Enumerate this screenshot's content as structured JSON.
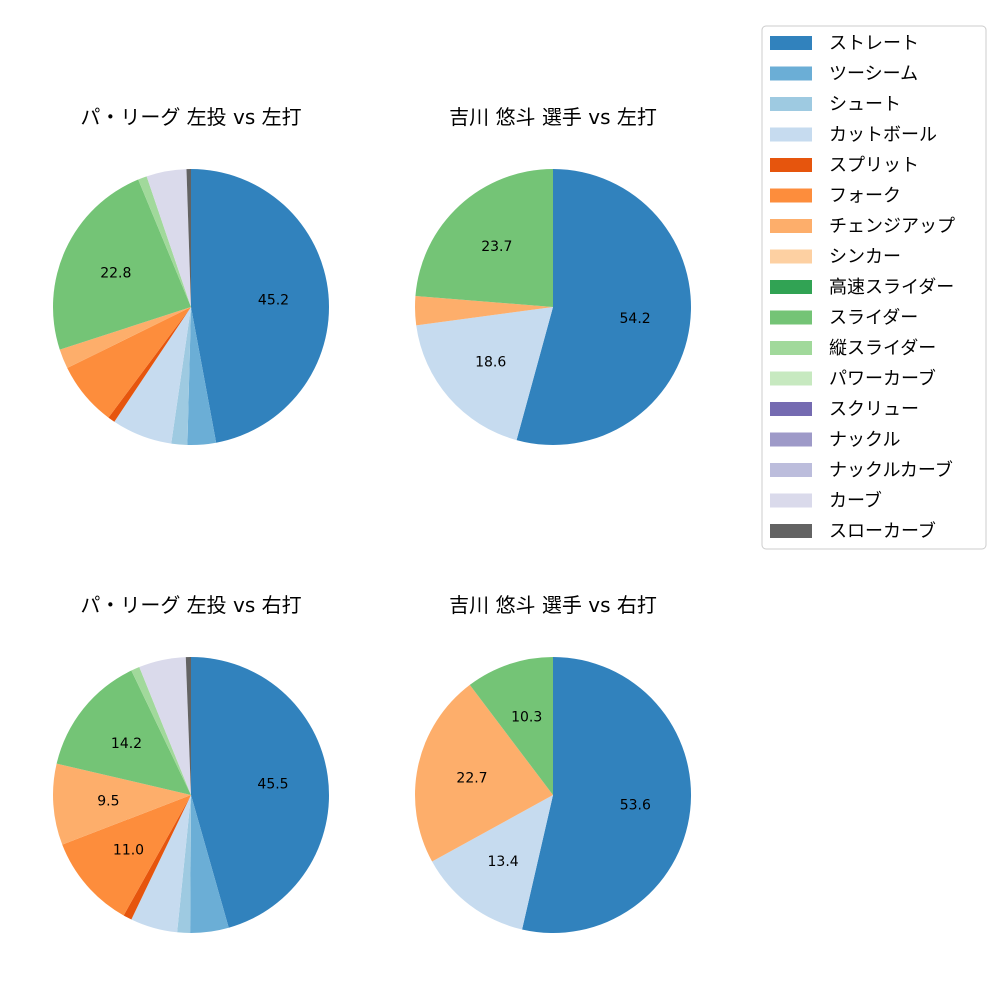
{
  "legend": {
    "placement": "right",
    "items": [
      {
        "name": "ストレート",
        "color": "#3182bd"
      },
      {
        "name": "ツーシーム",
        "color": "#6baed6"
      },
      {
        "name": "シュート",
        "color": "#9ecae1"
      },
      {
        "name": "カットボール",
        "color": "#c6dbef"
      },
      {
        "name": "スプリット",
        "color": "#e6550d"
      },
      {
        "name": "フォーク",
        "color": "#fd8d3c"
      },
      {
        "name": "チェンジアップ",
        "color": "#fdae6b"
      },
      {
        "name": "シンカー",
        "color": "#fdd0a2"
      },
      {
        "name": "高速スライダー",
        "color": "#31a354"
      },
      {
        "name": "スライダー",
        "color": "#74c476"
      },
      {
        "name": "縦スライダー",
        "color": "#a1d99b"
      },
      {
        "name": "パワーカーブ",
        "color": "#c7e9c0"
      },
      {
        "name": "スクリュー",
        "color": "#756bb1"
      },
      {
        "name": "ナックル",
        "color": "#9e9ac8"
      },
      {
        "name": "ナックルカーブ",
        "color": "#bcbddc"
      },
      {
        "name": "カーブ",
        "color": "#dadaeb"
      },
      {
        "name": "スローカーブ",
        "color": "#636363"
      }
    ]
  },
  "chart_data": [
    {
      "type": "pie",
      "title": "パ・リーグ 左投 vs 左打",
      "slices": [
        {
          "name": "ストレート",
          "value": 45.2,
          "label": "45.2"
        },
        {
          "name": "ツーシーム",
          "value": 3.2,
          "label": ""
        },
        {
          "name": "シュート",
          "value": 1.8,
          "label": ""
        },
        {
          "name": "カットボール",
          "value": 6.8,
          "label": ""
        },
        {
          "name": "スプリット",
          "value": 0.8,
          "label": ""
        },
        {
          "name": "フォーク",
          "value": 7.2,
          "label": ""
        },
        {
          "name": "チェンジアップ",
          "value": 2.2,
          "label": ""
        },
        {
          "name": "スライダー",
          "value": 22.8,
          "label": "22.8"
        },
        {
          "name": "縦スライダー",
          "value": 1.0,
          "label": ""
        },
        {
          "name": "カーブ",
          "value": 4.5,
          "label": ""
        },
        {
          "name": "スローカーブ",
          "value": 0.5,
          "label": ""
        }
      ]
    },
    {
      "type": "pie",
      "title": "吉川 悠斗 選手 vs 左打",
      "slices": [
        {
          "name": "ストレート",
          "value": 54.2,
          "label": "54.2"
        },
        {
          "name": "カットボール",
          "value": 18.6,
          "label": "18.6"
        },
        {
          "name": "チェンジアップ",
          "value": 3.4,
          "label": ""
        },
        {
          "name": "スライダー",
          "value": 23.7,
          "label": "23.7"
        }
      ]
    },
    {
      "type": "pie",
      "title": "パ・リーグ 左投 vs 右打",
      "slices": [
        {
          "name": "ストレート",
          "value": 45.5,
          "label": "45.5"
        },
        {
          "name": "ツーシーム",
          "value": 4.5,
          "label": ""
        },
        {
          "name": "シュート",
          "value": 1.5,
          "label": ""
        },
        {
          "name": "カットボール",
          "value": 5.5,
          "label": ""
        },
        {
          "name": "スプリット",
          "value": 1.0,
          "label": ""
        },
        {
          "name": "フォーク",
          "value": 11.0,
          "label": "11.0"
        },
        {
          "name": "チェンジアップ",
          "value": 9.5,
          "label": "9.5"
        },
        {
          "name": "スライダー",
          "value": 14.2,
          "label": "14.2"
        },
        {
          "name": "縦スライダー",
          "value": 1.0,
          "label": ""
        },
        {
          "name": "カーブ",
          "value": 5.5,
          "label": ""
        },
        {
          "name": "スローカーブ",
          "value": 0.6,
          "label": ""
        }
      ]
    },
    {
      "type": "pie",
      "title": "吉川 悠斗 選手 vs 右打",
      "slices": [
        {
          "name": "ストレート",
          "value": 53.6,
          "label": "53.6"
        },
        {
          "name": "カットボール",
          "value": 13.4,
          "label": "13.4"
        },
        {
          "name": "チェンジアップ",
          "value": 22.7,
          "label": "22.7"
        },
        {
          "name": "スライダー",
          "value": 10.3,
          "label": "10.3"
        }
      ]
    }
  ]
}
